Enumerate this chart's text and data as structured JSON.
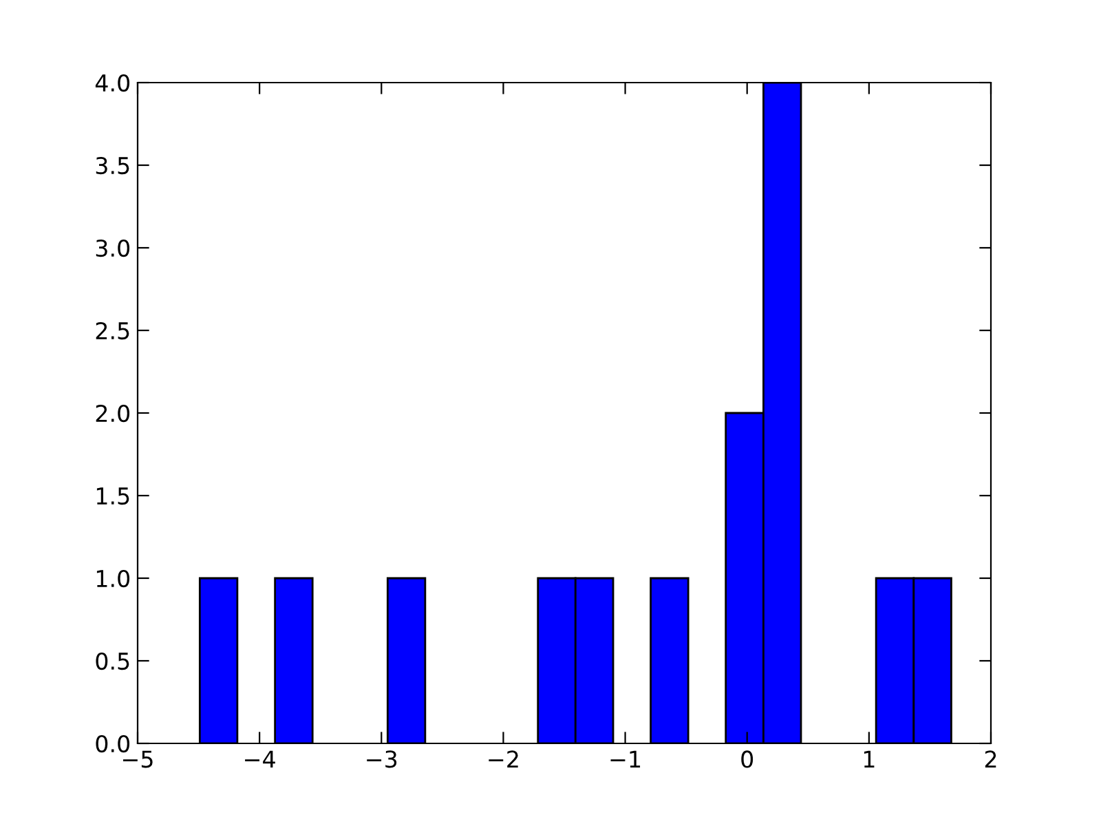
{
  "chart_data": {
    "type": "histogram",
    "bins": [
      -4.49,
      -4.182,
      -3.873,
      -3.565,
      -3.257,
      -2.949,
      -2.641,
      -2.332,
      -2.024,
      -1.716,
      -1.408,
      -1.099,
      -0.791,
      -0.483,
      -0.175,
      0.134,
      0.442,
      0.75,
      1.058,
      1.367,
      1.675
    ],
    "values": [
      1,
      0,
      1,
      0,
      0,
      1,
      0,
      0,
      0,
      1,
      1,
      0,
      1,
      0,
      2,
      4,
      0,
      0,
      1,
      1
    ],
    "color": "#0000ff",
    "xlim": [
      -5,
      2
    ],
    "xticks": [
      -5,
      -4,
      -3,
      -2,
      -1,
      0,
      1,
      2
    ],
    "ylim": [
      0.0,
      4.0
    ],
    "yticks": [
      {
        "value": 0,
        "label": "0.0"
      },
      0.5,
      {
        "value": 1,
        "label": "1.0"
      },
      1.5,
      {
        "value": 2,
        "label": "2.0"
      },
      2.5,
      {
        "value": 3,
        "label": "3.0"
      },
      3.5,
      {
        "value": 4,
        "label": "4.0"
      }
    ],
    "grid": false
  }
}
